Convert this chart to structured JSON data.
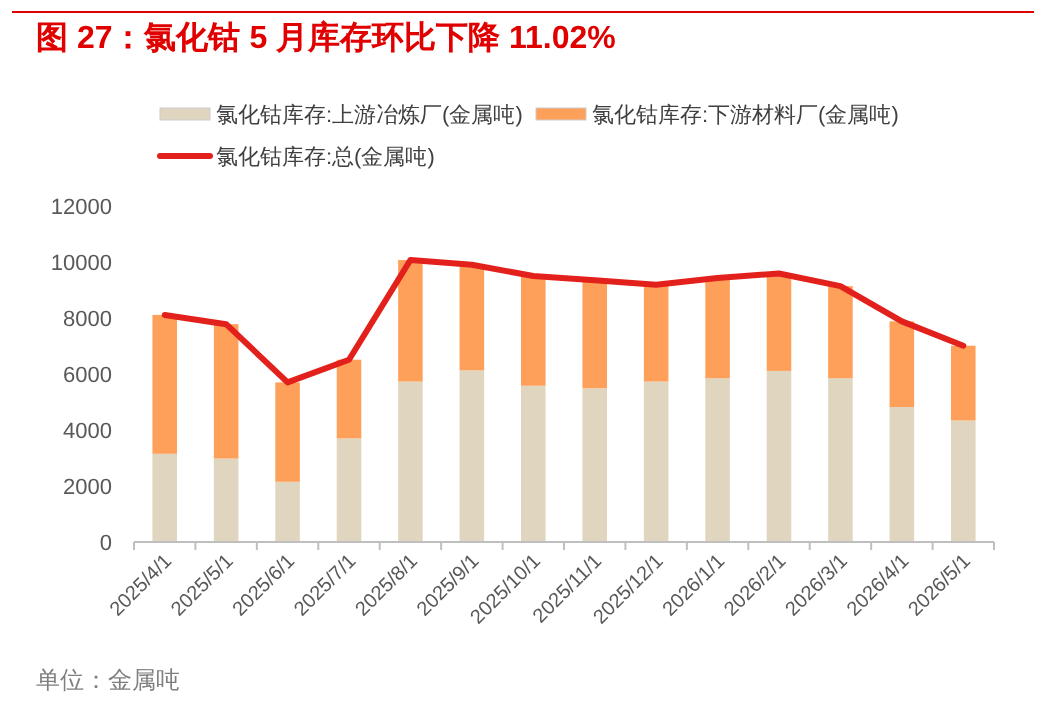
{
  "chart_data": {
    "type": "bar",
    "title": "图 27：氯化钴 5 月库存环比下降 11.02%",
    "stacked": true,
    "categories": [
      "2025/4/1",
      "2025/5/1",
      "2025/6/1",
      "2025/7/1",
      "2025/8/1",
      "2025/9/1",
      "2025/10/1",
      "2025/11/1",
      "2025/12/1",
      "2026/1/1",
      "2026/2/1",
      "2026/3/1",
      "2026/4/1",
      "2026/5/1"
    ],
    "series": [
      {
        "name": "氯化钴库存:上游冶炼厂(金属吨)",
        "color": "#e0d6bf",
        "values": [
          3150,
          2980,
          2150,
          3700,
          5730,
          6130,
          5580,
          5490,
          5730,
          5850,
          6110,
          5850,
          4820,
          4340
        ]
      },
      {
        "name": "氯化钴库存:下游材料厂(金属吨)",
        "color": "#ffa05a",
        "values": [
          4960,
          4800,
          3550,
          2810,
          4340,
          3770,
          3920,
          3860,
          3460,
          3580,
          3480,
          3290,
          3060,
          2670
        ]
      },
      {
        "name": "氯化钴库存:总(金属吨)",
        "type": "line",
        "color": "#e3211c",
        "values": [
          8110,
          7780,
          5700,
          6510,
          10070,
          9900,
          9500,
          9350,
          9190,
          9430,
          9590,
          9140,
          7880,
          7010
        ]
      }
    ],
    "ylim": [
      0,
      12000
    ],
    "yticks": [
      0,
      2000,
      4000,
      6000,
      8000,
      10000,
      12000
    ],
    "grid": false,
    "legend": "top",
    "annotations": [
      "单位：金属吨"
    ]
  }
}
